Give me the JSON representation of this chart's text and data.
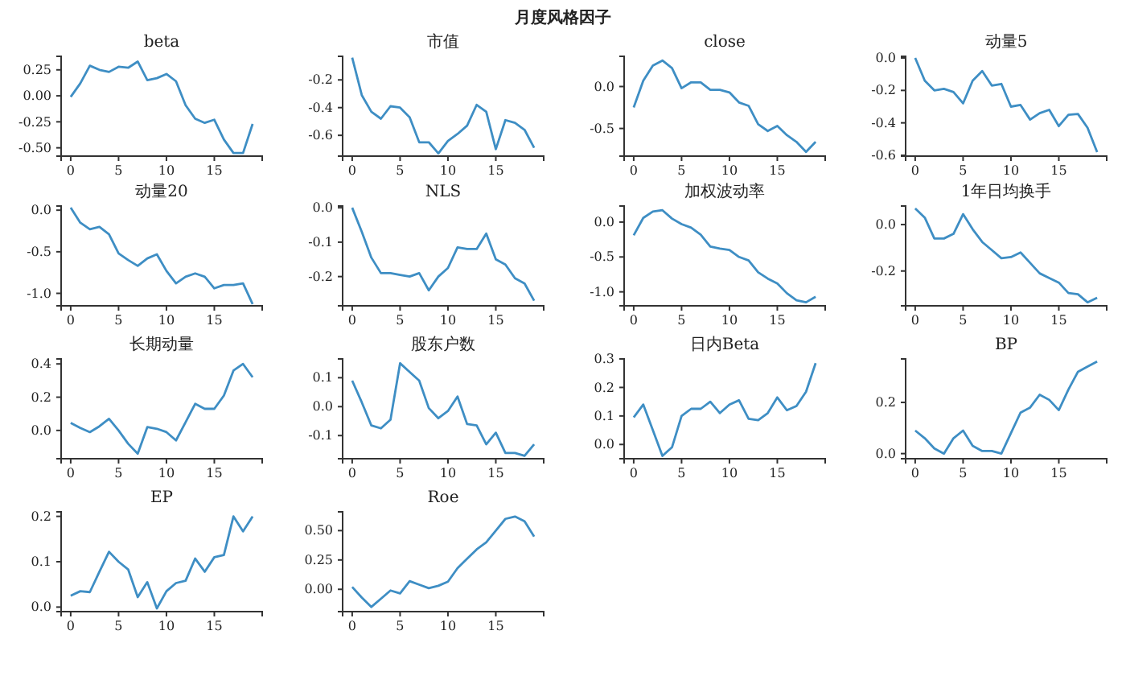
{
  "chart_data": [
    {
      "type": "line",
      "title": "beta",
      "annotations": [
        "月度风格因子"
      ],
      "x": [
        0,
        1,
        2,
        3,
        4,
        5,
        6,
        7,
        8,
        9,
        10,
        11,
        12,
        13,
        14,
        15,
        16,
        17,
        18,
        19
      ],
      "xlim": [
        -1,
        20
      ],
      "xticks": [
        0,
        5,
        10,
        15
      ],
      "ylim": [
        -0.58,
        0.38
      ],
      "yticks": [
        {
          "value": 0.25,
          "label": "0.25"
        },
        {
          "value": 0,
          "label": "0.00"
        },
        {
          "value": -0.25,
          "label": "-0.25"
        },
        {
          "value": -0.5,
          "label": "-0.50"
        }
      ],
      "series": [
        {
          "color": "#3e8ec4",
          "values": [
            -0.01,
            0.12,
            0.29,
            0.25,
            0.23,
            0.28,
            0.27,
            0.33,
            0.15,
            0.17,
            0.21,
            0.14,
            -0.09,
            -0.22,
            -0.26,
            -0.23,
            -0.42,
            -0.55,
            -0.55,
            -0.27
          ]
        }
      ]
    },
    {
      "type": "line",
      "title": "市值",
      "x": [
        0,
        1,
        2,
        3,
        4,
        5,
        6,
        7,
        8,
        9,
        10,
        11,
        12,
        13,
        14,
        15,
        16,
        17,
        18,
        19
      ],
      "xlim": [
        -1,
        20
      ],
      "xticks": [
        0,
        5,
        10,
        15
      ],
      "ylim": [
        -0.75,
        -0.03
      ],
      "yticks": [
        -0.2,
        -0.4,
        -0.6
      ],
      "series": [
        {
          "color": "#3e8ec4",
          "values": [
            -0.04,
            -0.31,
            -0.43,
            -0.48,
            -0.39,
            -0.4,
            -0.47,
            -0.65,
            -0.65,
            -0.73,
            -0.64,
            -0.59,
            -0.53,
            -0.38,
            -0.43,
            -0.7,
            -0.49,
            -0.51,
            -0.56,
            -0.69
          ]
        }
      ]
    },
    {
      "type": "line",
      "title": "close",
      "x": [
        0,
        1,
        2,
        3,
        4,
        5,
        6,
        7,
        8,
        9,
        10,
        11,
        12,
        13,
        14,
        15,
        16,
        17,
        18,
        19
      ],
      "xlim": [
        -1,
        20
      ],
      "xticks": [
        0,
        5,
        10,
        15
      ],
      "ylim": [
        -0.83,
        0.36
      ],
      "yticks": [
        {
          "value": 0,
          "label": "0.0"
        },
        {
          "value": -0.5,
          "label": "-0.5"
        }
      ],
      "series": [
        {
          "color": "#3e8ec4",
          "values": [
            -0.25,
            0.07,
            0.25,
            0.31,
            0.22,
            -0.02,
            0.05,
            0.05,
            -0.04,
            -0.04,
            -0.07,
            -0.19,
            -0.23,
            -0.45,
            -0.53,
            -0.47,
            -0.58,
            -0.66,
            -0.78,
            -0.66
          ]
        }
      ]
    },
    {
      "type": "line",
      "title": "动量5",
      "x": [
        0,
        1,
        2,
        3,
        4,
        5,
        6,
        7,
        8,
        9,
        10,
        11,
        12,
        13,
        14,
        15,
        16,
        17,
        18,
        19
      ],
      "xlim": [
        -1,
        20
      ],
      "xticks": [
        0,
        5,
        10,
        15
      ],
      "ylim": [
        -0.605,
        0.01
      ],
      "yticks": [
        {
          "value": 0,
          "label": "0.0"
        },
        -0.2,
        -0.4,
        -0.6
      ],
      "series": [
        {
          "color": "#3e8ec4",
          "values": [
            0,
            -0.14,
            -0.2,
            -0.19,
            -0.21,
            -0.28,
            -0.14,
            -0.08,
            -0.17,
            -0.16,
            -0.3,
            -0.29,
            -0.38,
            -0.34,
            -0.32,
            -0.42,
            -0.35,
            -0.345,
            -0.43,
            -0.58
          ]
        }
      ]
    },
    {
      "type": "line",
      "title": "动量20",
      "x": [
        0,
        1,
        2,
        3,
        4,
        5,
        6,
        7,
        8,
        9,
        10,
        11,
        12,
        13,
        14,
        15,
        16,
        17,
        18,
        19
      ],
      "xlim": [
        -1,
        20
      ],
      "xticks": [
        0,
        5,
        10,
        15
      ],
      "ylim": [
        -1.15,
        0.05
      ],
      "yticks": [
        {
          "value": 0,
          "label": "0.0"
        },
        -0.5,
        {
          "value": -1,
          "label": "-1.0"
        }
      ],
      "series": [
        {
          "color": "#3e8ec4",
          "values": [
            0.03,
            -0.15,
            -0.23,
            -0.2,
            -0.29,
            -0.52,
            -0.6,
            -0.67,
            -0.58,
            -0.53,
            -0.73,
            -0.88,
            -0.8,
            -0.76,
            -0.8,
            -0.94,
            -0.9,
            -0.9,
            -0.88,
            -1.13
          ]
        }
      ]
    },
    {
      "type": "line",
      "title": "NLS",
      "x": [
        0,
        1,
        2,
        3,
        4,
        5,
        6,
        7,
        8,
        9,
        10,
        11,
        12,
        13,
        14,
        15,
        16,
        17,
        18,
        19
      ],
      "xlim": [
        -1,
        20
      ],
      "xticks": [
        0,
        5,
        10,
        15
      ],
      "ylim": [
        -0.285,
        0.005
      ],
      "yticks": [
        {
          "value": 0,
          "label": "0.0"
        },
        -0.1,
        -0.2
      ],
      "series": [
        {
          "color": "#3e8ec4",
          "values": [
            0,
            -0.07,
            -0.145,
            -0.19,
            -0.19,
            -0.195,
            -0.2,
            -0.19,
            -0.24,
            -0.2,
            -0.175,
            -0.115,
            -0.12,
            -0.12,
            -0.075,
            -0.15,
            -0.165,
            -0.205,
            -0.22,
            -0.27
          ]
        }
      ]
    },
    {
      "type": "line",
      "title": "加权波动率",
      "x": [
        0,
        1,
        2,
        3,
        4,
        5,
        6,
        7,
        8,
        9,
        10,
        11,
        12,
        13,
        14,
        15,
        16,
        17,
        18,
        19
      ],
      "xlim": [
        -1,
        20
      ],
      "xticks": [
        0,
        5,
        10,
        15
      ],
      "ylim": [
        -1.2,
        0.23
      ],
      "yticks": [
        {
          "value": 0,
          "label": "0.0"
        },
        -0.5,
        {
          "value": -1,
          "label": "-1.0"
        }
      ],
      "series": [
        {
          "color": "#3e8ec4",
          "values": [
            -0.19,
            0.06,
            0.15,
            0.17,
            0.05,
            -0.03,
            -0.08,
            -0.18,
            -0.35,
            -0.38,
            -0.4,
            -0.5,
            -0.55,
            -0.72,
            -0.81,
            -0.88,
            -1.02,
            -1.12,
            -1.15,
            -1.07
          ]
        }
      ]
    },
    {
      "type": "line",
      "title": "1年日均换手",
      "x": [
        0,
        1,
        2,
        3,
        4,
        5,
        6,
        7,
        8,
        9,
        10,
        11,
        12,
        13,
        14,
        15,
        16,
        17,
        18,
        19
      ],
      "xlim": [
        -1,
        20
      ],
      "xticks": [
        0,
        5,
        10,
        15
      ],
      "ylim": [
        -0.35,
        0.08
      ],
      "yticks": [
        {
          "value": 0,
          "label": "0.0"
        },
        -0.2
      ],
      "series": [
        {
          "color": "#3e8ec4",
          "values": [
            0.07,
            0.03,
            -0.06,
            -0.06,
            -0.04,
            0.045,
            -0.02,
            -0.075,
            -0.11,
            -0.145,
            -0.14,
            -0.12,
            -0.165,
            -0.21,
            -0.23,
            -0.25,
            -0.295,
            -0.3,
            -0.335,
            -0.315
          ]
        }
      ]
    },
    {
      "type": "line",
      "title": "长期动量",
      "x": [
        0,
        1,
        2,
        3,
        4,
        5,
        6,
        7,
        8,
        9,
        10,
        11,
        12,
        13,
        14,
        15,
        16,
        17,
        18,
        19
      ],
      "xlim": [
        -1,
        20
      ],
      "xticks": [
        0,
        5,
        10,
        15
      ],
      "ylim": [
        -0.17,
        0.43
      ],
      "yticks": [
        {
          "value": 0,
          "label": "0.0"
        },
        0.2,
        0.4
      ],
      "series": [
        {
          "color": "#3e8ec4",
          "values": [
            0.045,
            0.015,
            -0.01,
            0.025,
            0.07,
            0,
            -0.08,
            -0.14,
            0.02,
            0.01,
            -0.01,
            -0.06,
            0.05,
            0.16,
            0.13,
            0.13,
            0.21,
            0.36,
            0.4,
            0.32
          ]
        }
      ]
    },
    {
      "type": "line",
      "title": "股东户数",
      "x": [
        0,
        1,
        2,
        3,
        4,
        5,
        6,
        7,
        8,
        9,
        10,
        11,
        12,
        13,
        14,
        15,
        16,
        17,
        18,
        19
      ],
      "xlim": [
        -1,
        20
      ],
      "xticks": [
        0,
        5,
        10,
        15
      ],
      "ylim": [
        -0.18,
        0.165
      ],
      "yticks": [
        0.1,
        {
          "value": 0,
          "label": "0.0"
        },
        -0.1
      ],
      "series": [
        {
          "color": "#3e8ec4",
          "values": [
            0.09,
            0.015,
            -0.065,
            -0.075,
            -0.045,
            0.15,
            0.12,
            0.09,
            -0.005,
            -0.04,
            -0.015,
            0.035,
            -0.06,
            -0.065,
            -0.13,
            -0.09,
            -0.16,
            -0.16,
            -0.17,
            -0.13
          ]
        }
      ]
    },
    {
      "type": "line",
      "title": "日内Beta",
      "x": [
        0,
        1,
        2,
        3,
        4,
        5,
        6,
        7,
        8,
        9,
        10,
        11,
        12,
        13,
        14,
        15,
        16,
        17,
        18,
        19
      ],
      "xlim": [
        -1,
        20
      ],
      "xticks": [
        0,
        5,
        10,
        15
      ],
      "ylim": [
        -0.05,
        0.3
      ],
      "yticks": [
        {
          "value": 0,
          "label": "0.0"
        },
        0.1,
        0.2,
        0.3
      ],
      "series": [
        {
          "color": "#3e8ec4",
          "values": [
            0.095,
            0.14,
            0.05,
            -0.04,
            -0.01,
            0.1,
            0.125,
            0.125,
            0.15,
            0.11,
            0.14,
            0.155,
            0.09,
            0.085,
            0.11,
            0.165,
            0.12,
            0.135,
            0.185,
            0.285
          ]
        }
      ]
    },
    {
      "type": "line",
      "title": "BP",
      "x": [
        0,
        1,
        2,
        3,
        4,
        5,
        6,
        7,
        8,
        9,
        10,
        11,
        12,
        13,
        14,
        15,
        16,
        17,
        18,
        19
      ],
      "xlim": [
        -1,
        20
      ],
      "xticks": [
        0,
        5,
        10,
        15
      ],
      "ylim": [
        -0.02,
        0.37
      ],
      "yticks": [
        {
          "value": 0,
          "label": "0.0"
        },
        0.2
      ],
      "series": [
        {
          "color": "#3e8ec4",
          "values": [
            0.09,
            0.06,
            0.02,
            0,
            0.06,
            0.09,
            0.03,
            0.01,
            0.01,
            0,
            0.08,
            0.16,
            0.18,
            0.23,
            0.21,
            0.17,
            0.25,
            0.32,
            0.34,
            0.36
          ]
        }
      ]
    },
    {
      "type": "line",
      "title": "EP",
      "x": [
        0,
        1,
        2,
        3,
        4,
        5,
        6,
        7,
        8,
        9,
        10,
        11,
        12,
        13,
        14,
        15,
        16,
        17,
        18,
        19
      ],
      "xlim": [
        -1,
        20
      ],
      "xticks": [
        0,
        5,
        10,
        15
      ],
      "ylim": [
        -0.01,
        0.21
      ],
      "yticks": [
        {
          "value": 0,
          "label": "0.0"
        },
        0.1,
        0.2
      ],
      "series": [
        {
          "color": "#3e8ec4",
          "values": [
            0.025,
            0.035,
            0.033,
            0.078,
            0.122,
            0.1,
            0.083,
            0.022,
            0.055,
            -0.003,
            0.035,
            0.053,
            0.058,
            0.107,
            0.078,
            0.11,
            0.115,
            0.2,
            0.167,
            0.2
          ]
        }
      ]
    },
    {
      "type": "line",
      "title": "Roe",
      "x": [
        0,
        1,
        2,
        3,
        4,
        5,
        6,
        7,
        8,
        9,
        10,
        11,
        12,
        13,
        14,
        15,
        16,
        17,
        18,
        19
      ],
      "xlim": [
        -1,
        20
      ],
      "xticks": [
        0,
        5,
        10,
        15
      ],
      "ylim": [
        -0.19,
        0.66
      ],
      "yticks": [
        {
          "value": 0,
          "label": "0.00"
        },
        {
          "value": 0.25,
          "label": "0.25"
        },
        {
          "value": 0.5,
          "label": "0.50"
        }
      ],
      "series": [
        {
          "color": "#3e8ec4",
          "values": [
            0.02,
            -0.07,
            -0.15,
            -0.08,
            -0.01,
            -0.035,
            0.07,
            0.04,
            0.01,
            0.03,
            0.065,
            0.18,
            0.26,
            0.34,
            0.4,
            0.5,
            0.6,
            0.62,
            0.58,
            0.45
          ]
        }
      ]
    }
  ]
}
